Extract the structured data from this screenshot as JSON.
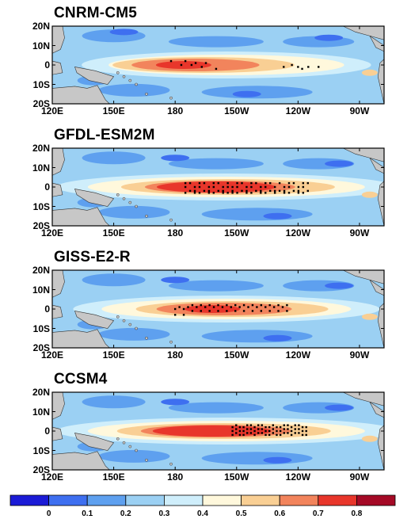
{
  "panels": [
    {
      "title": "CNRM-CM5",
      "core_value": 0.7,
      "center_lon": 185,
      "dots": "west-east-split"
    },
    {
      "title": "GFDL-ESM2M",
      "core_value": 0.8,
      "center_lon": 200,
      "dots": "broad"
    },
    {
      "title": "GISS-E2-R",
      "core_value": 0.7,
      "center_lon": 205,
      "dots": "central"
    },
    {
      "title": "CCSM4",
      "core_value": 0.8,
      "center_lon": 200,
      "dots": "eastern"
    }
  ],
  "lat_labels": [
    "20N",
    "10N",
    "0",
    "10S",
    "20S"
  ],
  "lon_labels": [
    "120E",
    "150E",
    "180",
    "150W",
    "120W",
    "90W"
  ],
  "colorbar": {
    "labels": [
      "0",
      "0.1",
      "0.2",
      "0.3",
      "0.4",
      "0.5",
      "0.6",
      "0.7",
      "0.8"
    ],
    "colors": [
      "#1b1bd6",
      "#3e6ff0",
      "#5ea0ef",
      "#9bd0f3",
      "#cfeefb",
      "#fff8dc",
      "#f9cf94",
      "#f2845c",
      "#e8362b",
      "#a50a26"
    ]
  },
  "colors": {
    "land": "#c7c7c7",
    "stipple": "#000000"
  }
}
